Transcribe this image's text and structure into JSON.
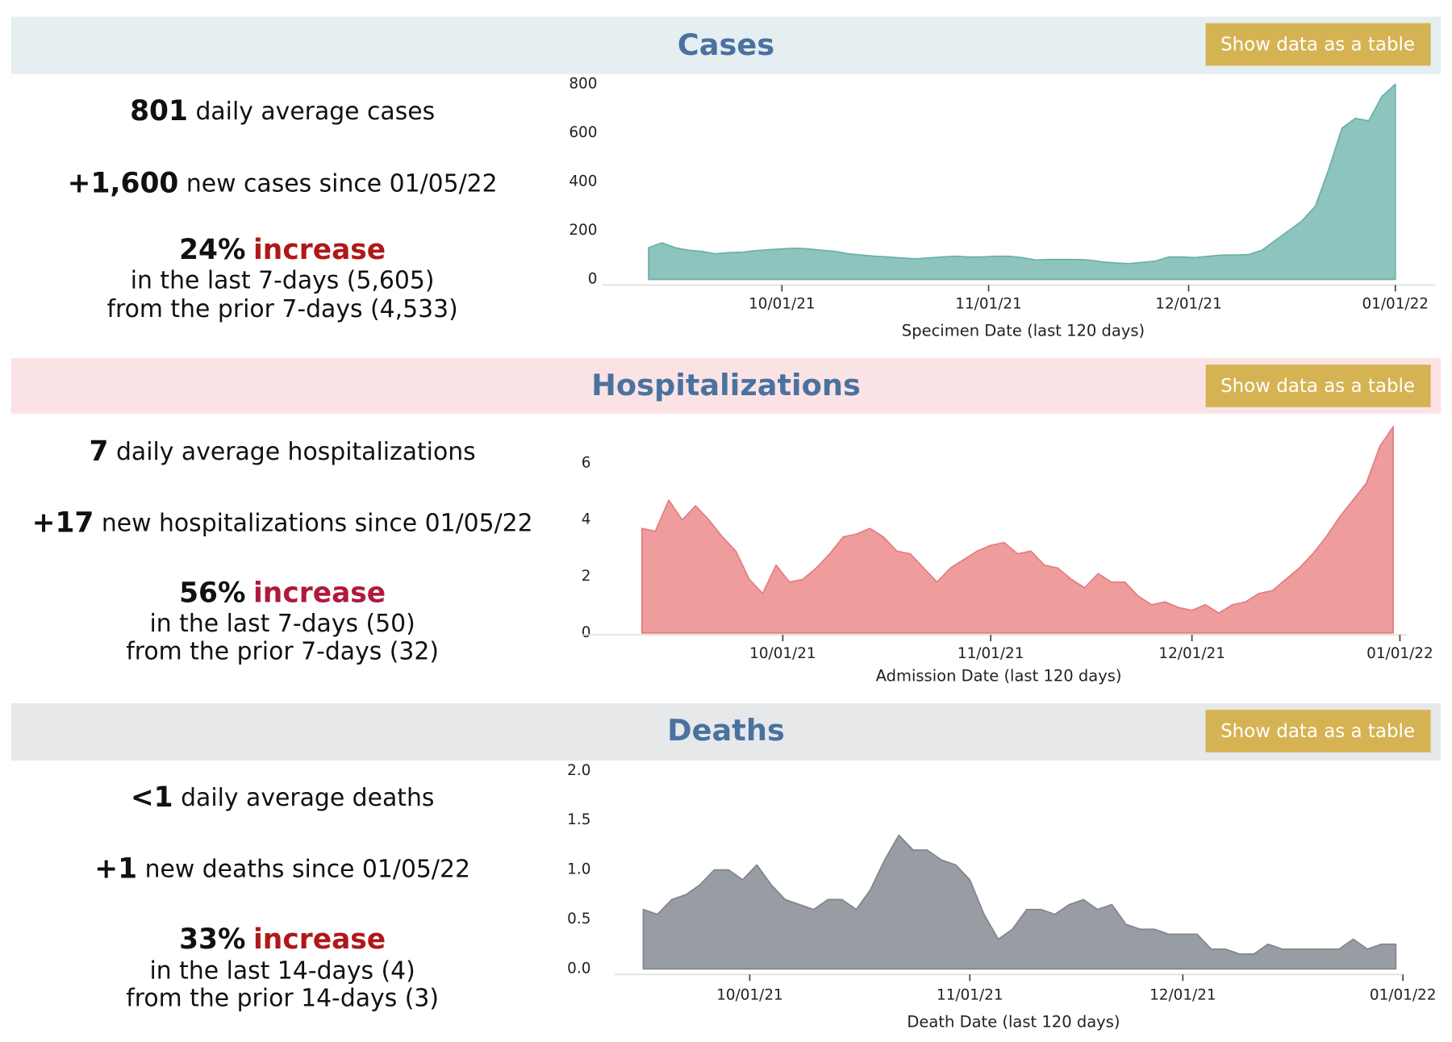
{
  "panels": [
    {
      "title": "Cases",
      "button": "Show data as a table",
      "stats": {
        "avg_value": "801",
        "avg_text": "daily average cases",
        "new_value": "+1,600",
        "new_text": "new cases since 01/05/22",
        "pct": "24%",
        "pct_word": "increase",
        "last": "in the last 7-days (5,605)",
        "prior": "from the prior 7-days (4,533)"
      }
    },
    {
      "title": "Hospitalizations",
      "button": "Show data as a table",
      "stats": {
        "avg_value": "7",
        "avg_text": "daily average hospitalizations",
        "new_value": "+17",
        "new_text": "new hospitalizations since 01/05/22",
        "pct": "56%",
        "pct_word": "increase",
        "last": "in the last 7-days (50)",
        "prior": "from the prior 7-days (32)"
      }
    },
    {
      "title": "Deaths",
      "button": "Show data as a table",
      "stats": {
        "avg_value": "<1",
        "avg_text": "daily average deaths",
        "new_value": "+1",
        "new_text": "new deaths since 01/05/22",
        "pct": "33%",
        "pct_word": "increase",
        "last": "in the last 14-days (4)",
        "prior": "from the prior 14-days (3)"
      }
    }
  ],
  "chart_data": [
    {
      "type": "area",
      "color": "#8ec4be",
      "stroke": "#6cb0a9",
      "xlabel": "Specimen Date (last 120 days)",
      "x": [
        "09/11/21",
        "09/13/21",
        "09/15/21",
        "09/17/21",
        "09/19/21",
        "09/21/21",
        "09/23/21",
        "09/25/21",
        "09/27/21",
        "09/29/21",
        "10/01/21",
        "10/03/21",
        "10/05/21",
        "10/07/21",
        "10/09/21",
        "10/11/21",
        "10/13/21",
        "10/15/21",
        "10/17/21",
        "10/19/21",
        "10/21/21",
        "10/23/21",
        "10/25/21",
        "10/27/21",
        "10/29/21",
        "10/31/21",
        "11/02/21",
        "11/04/21",
        "11/06/21",
        "11/08/21",
        "11/10/21",
        "11/12/21",
        "11/14/21",
        "11/16/21",
        "11/18/21",
        "11/20/21",
        "11/22/21",
        "11/24/21",
        "11/26/21",
        "11/28/21",
        "11/30/21",
        "12/02/21",
        "12/04/21",
        "12/06/21",
        "12/08/21",
        "12/10/21",
        "12/12/21",
        "12/14/21",
        "12/16/21",
        "12/18/21",
        "12/20/21",
        "12/22/21",
        "12/24/21",
        "12/26/21",
        "12/28/21",
        "12/30/21",
        "01/01/22"
      ],
      "values": [
        130,
        150,
        130,
        120,
        115,
        105,
        110,
        112,
        118,
        122,
        125,
        128,
        125,
        120,
        115,
        105,
        100,
        95,
        92,
        88,
        85,
        88,
        92,
        95,
        92,
        92,
        95,
        95,
        90,
        80,
        82,
        82,
        82,
        80,
        72,
        68,
        65,
        70,
        75,
        92,
        92,
        90,
        95,
        100,
        100,
        102,
        120,
        160,
        200,
        240,
        300,
        450,
        620,
        660,
        650,
        750,
        800
      ],
      "xlim": [
        "09/04/21",
        "01/07/22"
      ],
      "xticks": [
        "10/01/21",
        "11/01/21",
        "12/01/21",
        "01/01/22"
      ],
      "ylim": [
        0,
        800
      ],
      "yticks": [
        0,
        200,
        400,
        600,
        800
      ]
    },
    {
      "type": "area",
      "color": "#ef9c9d",
      "stroke": "#e47d80",
      "xlabel": "Admission Date (last 120 days)",
      "x": [
        "09/10/21",
        "09/12/21",
        "09/14/21",
        "09/16/21",
        "09/18/21",
        "09/20/21",
        "09/22/21",
        "09/24/21",
        "09/26/21",
        "09/28/21",
        "09/30/21",
        "10/02/21",
        "10/04/21",
        "10/06/21",
        "10/08/21",
        "10/10/21",
        "10/12/21",
        "10/14/21",
        "10/16/21",
        "10/18/21",
        "10/20/21",
        "10/22/21",
        "10/24/21",
        "10/26/21",
        "10/28/21",
        "10/30/21",
        "11/01/21",
        "11/03/21",
        "11/05/21",
        "11/07/21",
        "11/09/21",
        "11/11/21",
        "11/13/21",
        "11/15/21",
        "11/17/21",
        "11/19/21",
        "11/21/21",
        "11/23/21",
        "11/25/21",
        "11/27/21",
        "11/29/21",
        "12/01/21",
        "12/03/21",
        "12/05/21",
        "12/07/21",
        "12/09/21",
        "12/11/21",
        "12/13/21",
        "12/15/21",
        "12/17/21",
        "12/19/21",
        "12/21/21",
        "12/23/21",
        "12/25/21",
        "12/27/21",
        "12/29/21",
        "12/31/21"
      ],
      "values": [
        3.7,
        3.6,
        4.7,
        4.0,
        4.5,
        4.0,
        3.4,
        2.9,
        1.9,
        1.4,
        2.4,
        1.8,
        1.9,
        2.3,
        2.8,
        3.4,
        3.5,
        3.7,
        3.4,
        2.9,
        2.8,
        2.3,
        1.8,
        2.3,
        2.6,
        2.9,
        3.1,
        3.2,
        2.8,
        2.9,
        2.4,
        2.3,
        1.9,
        1.6,
        2.1,
        1.8,
        1.8,
        1.3,
        1.0,
        1.1,
        0.9,
        0.8,
        1.0,
        0.7,
        1.0,
        1.1,
        1.4,
        1.5,
        1.9,
        2.3,
        2.8,
        3.4,
        4.1,
        4.7,
        5.3,
        6.6,
        7.3
      ],
      "xlim": [
        "09/01/21",
        "01/02/22"
      ],
      "xticks": [
        "10/01/21",
        "11/01/21",
        "12/01/21",
        "01/01/22"
      ],
      "ylim": [
        0,
        7.5
      ],
      "yticks": [
        0,
        2,
        4,
        6
      ]
    },
    {
      "type": "area",
      "color": "#989ca3",
      "stroke": "#80868d",
      "xlabel": "Death Date (last 120 days)",
      "x": [
        "09/16/21",
        "09/18/21",
        "09/20/21",
        "09/22/21",
        "09/24/21",
        "09/26/21",
        "09/28/21",
        "09/30/21",
        "10/02/21",
        "10/04/21",
        "10/06/21",
        "10/08/21",
        "10/10/21",
        "10/12/21",
        "10/14/21",
        "10/16/21",
        "10/18/21",
        "10/20/21",
        "10/22/21",
        "10/24/21",
        "10/26/21",
        "10/28/21",
        "10/30/21",
        "11/01/21",
        "11/03/21",
        "11/05/21",
        "11/07/21",
        "11/09/21",
        "11/11/21",
        "11/13/21",
        "11/15/21",
        "11/17/21",
        "11/19/21",
        "11/21/21",
        "11/23/21",
        "11/25/21",
        "11/27/21",
        "11/29/21",
        "12/01/21",
        "12/03/21",
        "12/05/21",
        "12/07/21",
        "12/09/21",
        "12/11/21",
        "12/13/21",
        "12/15/21",
        "12/17/21",
        "12/19/21",
        "12/21/21",
        "12/23/21",
        "12/25/21",
        "12/27/21",
        "12/29/21",
        "12/31/21"
      ],
      "values": [
        0.6,
        0.55,
        0.7,
        0.75,
        0.85,
        1.0,
        1.0,
        0.9,
        1.05,
        0.85,
        0.7,
        0.65,
        0.6,
        0.7,
        0.7,
        0.6,
        0.8,
        1.1,
        1.35,
        1.2,
        1.2,
        1.1,
        1.05,
        0.9,
        0.55,
        0.3,
        0.4,
        0.6,
        0.6,
        0.55,
        0.65,
        0.7,
        0.6,
        0.65,
        0.45,
        0.4,
        0.4,
        0.35,
        0.35,
        0.35,
        0.2,
        0.2,
        0.15,
        0.15,
        0.25,
        0.2,
        0.2,
        0.2,
        0.2,
        0.2,
        0.3,
        0.2,
        0.25,
        0.25
      ],
      "xlim": [
        "09/12/21",
        "01/01/22"
      ],
      "xticks": [
        "10/01/21",
        "11/01/21",
        "12/01/21",
        "01/01/22"
      ],
      "ylim": [
        0,
        2
      ],
      "yticks": [
        {
          "value": 0,
          "label": "0.0"
        },
        0.5,
        {
          "value": 1,
          "label": "1.0"
        },
        1.5,
        {
          "value": 2,
          "label": "2.0"
        }
      ]
    }
  ]
}
